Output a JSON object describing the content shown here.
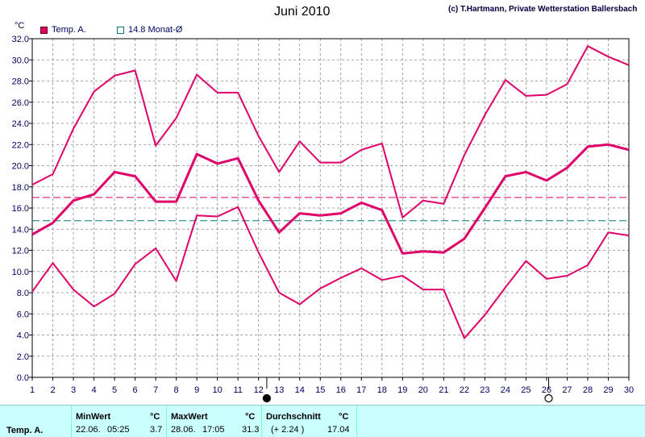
{
  "header": {
    "title": "Juni 2010",
    "copyright": "(c) T.Hartmann, Private Wetterstation Ballersbach",
    "unit": "°C"
  },
  "legend": {
    "series": {
      "label": "Temp. A.",
      "color": "#e0006a"
    },
    "reference": {
      "label": "14.8 Monat-Ø",
      "color": "#007a7a"
    }
  },
  "chart_data": {
    "type": "line",
    "title": "Juni 2010",
    "ylabel": "°C",
    "x": [
      1,
      2,
      3,
      4,
      5,
      6,
      7,
      8,
      9,
      10,
      11,
      12,
      13,
      14,
      15,
      16,
      17,
      18,
      19,
      20,
      21,
      22,
      23,
      24,
      25,
      26,
      27,
      28,
      29,
      30
    ],
    "ylim": [
      0,
      32
    ],
    "yticks": [
      0.0,
      2.0,
      4.0,
      6.0,
      8.0,
      10.0,
      12.0,
      14.0,
      16.0,
      18.0,
      20.0,
      22.0,
      24.0,
      26.0,
      28.0,
      30.0,
      32.0
    ],
    "grid": true,
    "series": [
      {
        "role": "max",
        "color": "#e0006a",
        "values": [
          18.2,
          19.2,
          23.5,
          27.0,
          28.5,
          29.0,
          21.9,
          24.5,
          28.6,
          26.9,
          26.9,
          22.8,
          19.4,
          22.3,
          20.3,
          20.3,
          21.5,
          22.1,
          15.1,
          16.7,
          16.4,
          21.0,
          24.8,
          28.1,
          26.6,
          26.7,
          27.7,
          31.3,
          30.3,
          29.5
        ]
      },
      {
        "role": "mean",
        "color": "#e0006a",
        "values": [
          13.5,
          14.6,
          16.7,
          17.3,
          19.4,
          19.0,
          16.6,
          16.6,
          21.1,
          20.2,
          20.7,
          16.7,
          13.7,
          15.5,
          15.3,
          15.5,
          16.5,
          15.8,
          11.7,
          11.9,
          11.8,
          13.1,
          16.0,
          19.0,
          19.4,
          18.6,
          19.8,
          21.8,
          22.0,
          21.5
        ]
      },
      {
        "role": "min",
        "color": "#e0006a",
        "values": [
          8.1,
          10.8,
          8.3,
          6.7,
          7.9,
          10.7,
          12.2,
          9.1,
          15.3,
          15.2,
          16.1,
          11.8,
          8.0,
          6.9,
          8.4,
          9.4,
          10.3,
          9.2,
          9.6,
          8.3,
          8.3,
          3.7,
          5.9,
          8.5,
          11.0,
          9.3,
          9.6,
          10.6,
          13.7,
          13.4
        ]
      }
    ],
    "reference_lines": [
      {
        "value": 17.0,
        "color": "#e0006a",
        "style": "dashed"
      },
      {
        "value": 14.8,
        "color": "#007a7a",
        "style": "dashed"
      }
    ],
    "moon_phases": [
      {
        "day": 12.4,
        "phase": "new"
      },
      {
        "day": 26.1,
        "phase": "full"
      }
    ]
  },
  "stats": {
    "row_label": "Temp. A.",
    "min": {
      "header": "MinWert",
      "unit": "°C",
      "date": "22.06.",
      "time": "05:25",
      "value": "3.7"
    },
    "max": {
      "header": "MaxWert",
      "unit": "°C",
      "date": "28.06.",
      "time": "17:05",
      "value": "31.3"
    },
    "avg": {
      "header": "Durchschnitt",
      "unit": "°C",
      "delta": "(+ 2.24 )",
      "value": "17.04"
    }
  }
}
